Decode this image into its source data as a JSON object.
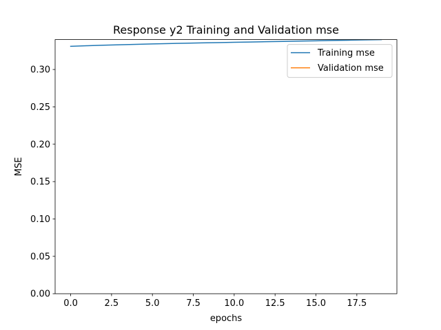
{
  "chart_data": {
    "type": "line",
    "title": "Response y2 Training and Validation mse",
    "xlabel": "epochs",
    "ylabel": "MSE",
    "xlim": [
      -0.95,
      19.95
    ],
    "ylim": [
      0.0,
      0.34
    ],
    "xticks": [
      0.0,
      2.5,
      5.0,
      7.5,
      10.0,
      12.5,
      15.0,
      17.5
    ],
    "xtick_labels": [
      "0.0",
      "2.5",
      "5.0",
      "7.5",
      "10.0",
      "12.5",
      "15.0",
      "17.5"
    ],
    "yticks": [
      0.0,
      0.05,
      0.1,
      0.15,
      0.2,
      0.25,
      0.3
    ],
    "ytick_labels": [
      "0.00",
      "0.05",
      "0.10",
      "0.15",
      "0.20",
      "0.25",
      "0.30"
    ],
    "grid": false,
    "legend_position": "top-right",
    "series": [
      {
        "name": "Training mse",
        "color": "#1f77b4",
        "x": [
          0,
          1,
          2,
          3,
          4,
          5,
          6,
          7,
          8,
          9,
          10,
          11,
          12,
          13,
          14,
          15,
          16,
          17,
          18,
          19
        ],
        "values": [
          0.331,
          0.3318,
          0.3325,
          0.3331,
          0.3337,
          0.3342,
          0.3347,
          0.3352,
          0.3356,
          0.336,
          0.3364,
          0.3368,
          0.3372,
          0.3376,
          0.338,
          0.3384,
          0.3388,
          0.3392,
          0.3396,
          0.34
        ]
      },
      {
        "name": "Validation mse",
        "color": "#ff7f0e",
        "x": [],
        "values": []
      }
    ]
  }
}
